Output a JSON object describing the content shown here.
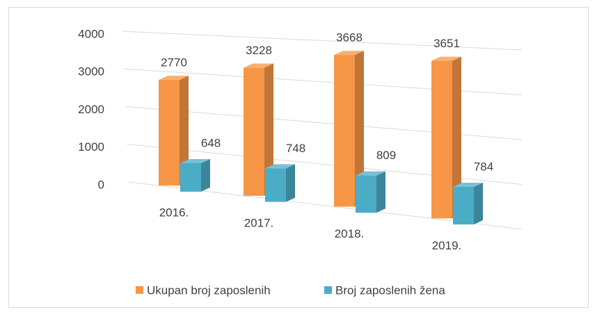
{
  "chart_data": {
    "type": "bar3d",
    "categories": [
      "2016.",
      "2017.",
      "2018.",
      "2019."
    ],
    "series": [
      {
        "name": "Ukupan broj zaposlenih",
        "color": "#f79646",
        "values": [
          2770,
          3228,
          3668,
          3651
        ]
      },
      {
        "name": "Broj zaposlenih žena",
        "color": "#4bacc6",
        "values": [
          648,
          748,
          809,
          784
        ]
      }
    ],
    "ylim": [
      0,
      4000
    ],
    "yticks": [
      0,
      1000,
      2000,
      3000,
      4000
    ],
    "grid": true,
    "legend": "bottom"
  }
}
